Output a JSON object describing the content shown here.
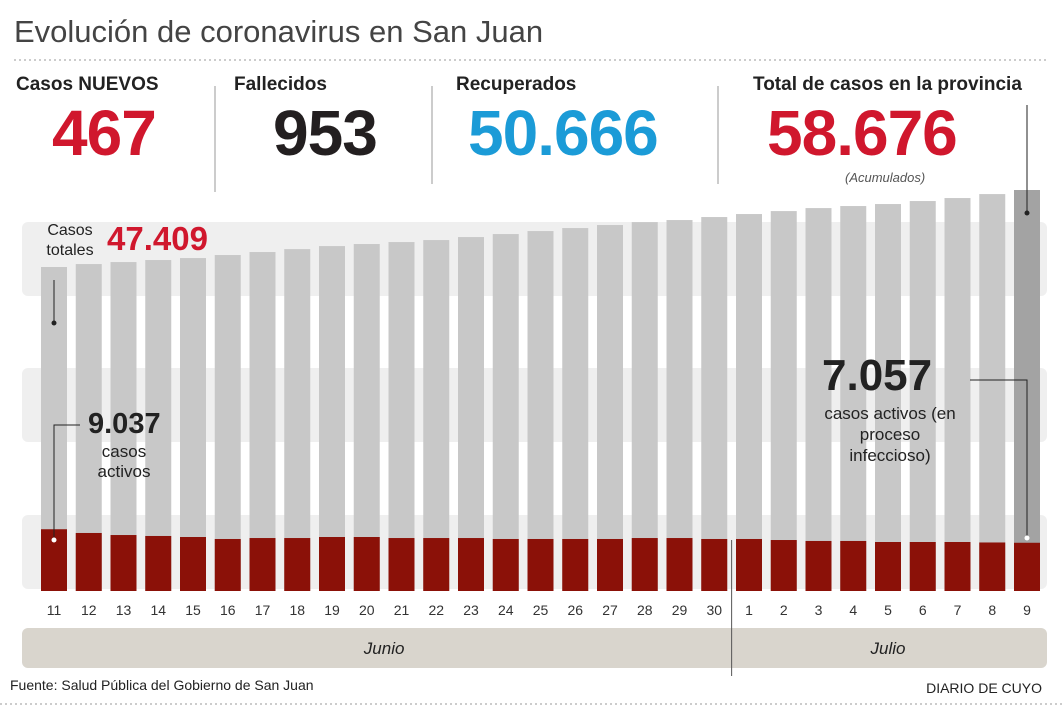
{
  "chart_data": {
    "type": "bar",
    "title": "Evolución de coronavirus en San Juan",
    "stats": [
      {
        "label": "Casos NUEVOS",
        "value": "467",
        "color": "#d0172d"
      },
      {
        "label": "Fallecidos",
        "value": "953",
        "color": "#231f20"
      },
      {
        "label": "Recuperados",
        "value": "50.666",
        "color": "#1b9bd7"
      },
      {
        "label": "Total de casos en la provincia",
        "value": "58.676",
        "color": "#d0172d",
        "note": "(Acumulados)"
      }
    ],
    "categories": [
      "11",
      "12",
      "13",
      "14",
      "15",
      "16",
      "17",
      "18",
      "19",
      "20",
      "21",
      "22",
      "23",
      "24",
      "25",
      "26",
      "27",
      "28",
      "29",
      "30",
      "1",
      "2",
      "3",
      "4",
      "5",
      "6",
      "7",
      "8",
      "9"
    ],
    "months": [
      "Junio",
      "Julio"
    ],
    "series": [
      {
        "name": "Casos totales",
        "color": "#c8c8c8",
        "values": [
          47409,
          47840,
          48130,
          48430,
          48720,
          49160,
          49600,
          50030,
          50470,
          50770,
          51060,
          51350,
          51790,
          52230,
          52670,
          53110,
          53550,
          53980,
          54280,
          54720,
          55160,
          55590,
          56030,
          56330,
          56620,
          57060,
          57500,
          58080,
          58676
        ],
        "value_labels": [
          "47.409",
          null,
          null,
          null,
          null,
          null,
          null,
          null,
          null,
          null,
          null,
          null,
          null,
          null,
          null,
          null,
          null,
          null,
          null,
          null,
          null,
          null,
          null,
          null,
          null,
          null,
          null,
          null,
          null
        ]
      },
      {
        "name": "casos activos",
        "color": "#8b1108",
        "values": [
          9037,
          8490,
          8190,
          8050,
          7900,
          7610,
          7750,
          7750,
          7900,
          7900,
          7750,
          7750,
          7750,
          7610,
          7610,
          7610,
          7610,
          7750,
          7750,
          7610,
          7610,
          7460,
          7320,
          7320,
          7170,
          7170,
          7170,
          7100,
          7057
        ],
        "value_labels": [
          "9.037",
          null,
          null,
          null,
          null,
          null,
          null,
          null,
          null,
          null,
          null,
          null,
          null,
          null,
          null,
          null,
          null,
          null,
          null,
          null,
          null,
          null,
          null,
          null,
          null,
          null,
          null,
          null,
          "7.057"
        ]
      }
    ],
    "annotation": "casos activos (en proceso infeccioso)",
    "source": "Fuente: Salud Pública del Gobierno de San Juan",
    "credit": "DIARIO DE CUYO"
  }
}
